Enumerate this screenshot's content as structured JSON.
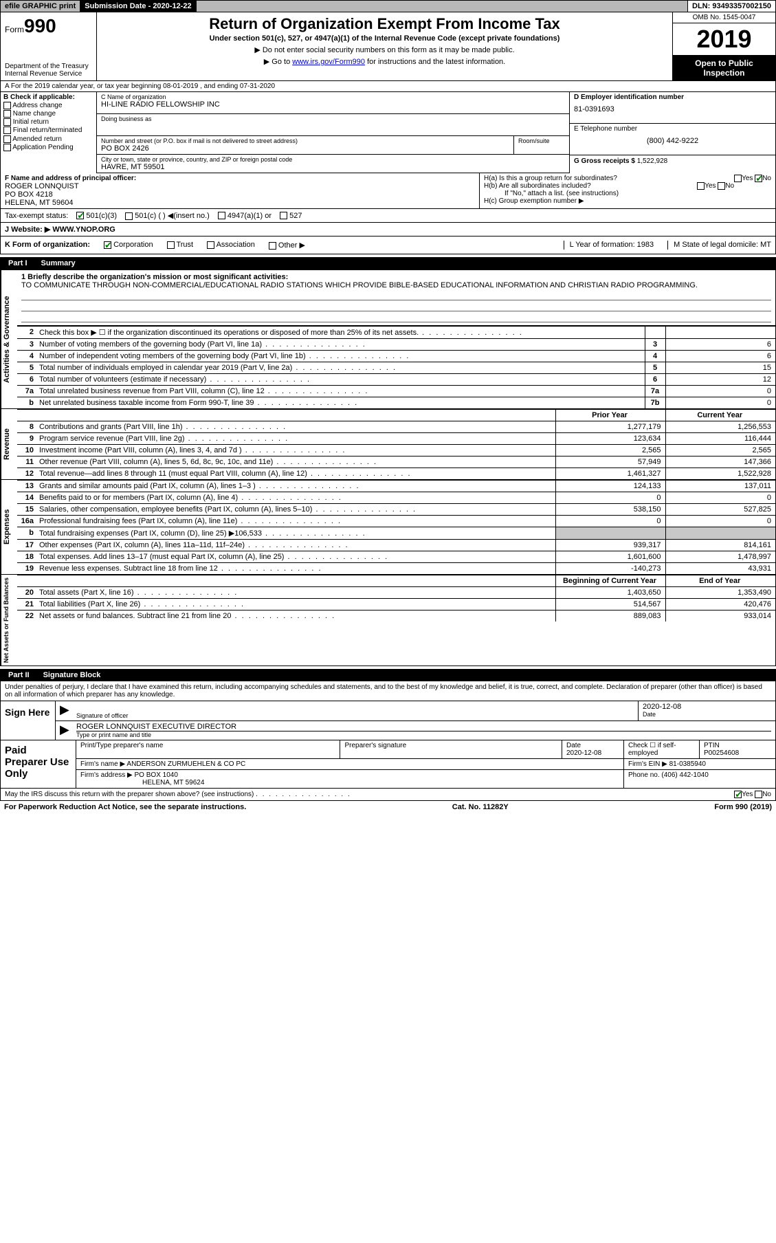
{
  "topbar": {
    "efile": "efile GRAPHIC print",
    "submission_label": "Submission Date - 2020-12-22",
    "dln": "DLN: 93493357002150"
  },
  "header": {
    "form_prefix": "Form",
    "form_number": "990",
    "dept": "Department of the Treasury\nInternal Revenue Service",
    "title": "Return of Organization Exempt From Income Tax",
    "sub": "Under section 501(c), 527, or 4947(a)(1) of the Internal Revenue Code (except private foundations)",
    "arrow1": "▶ Do not enter social security numbers on this form as it may be made public.",
    "arrow2_pre": "▶ Go to ",
    "arrow2_link": "www.irs.gov/Form990",
    "arrow2_post": " for instructions and the latest information.",
    "omb": "OMB No. 1545-0047",
    "year": "2019",
    "open": "Open to Public Inspection"
  },
  "rowA": "A For the 2019 calendar year, or tax year beginning 08-01-2019   , and ending 07-31-2020",
  "B": {
    "label": "B Check if applicable:",
    "opts": [
      "Address change",
      "Name change",
      "Initial return",
      "Final return/terminated",
      "Amended return",
      "Application Pending"
    ]
  },
  "C": {
    "name_lbl": "C Name of organization",
    "name": "HI-LINE RADIO FELLOWSHIP INC",
    "dba_lbl": "Doing business as",
    "street_lbl": "Number and street (or P.O. box if mail is not delivered to street address)",
    "room_lbl": "Room/suite",
    "street": "PO BOX 2426",
    "city_lbl": "City or town, state or province, country, and ZIP or foreign postal code",
    "city": "HAVRE, MT  59501"
  },
  "D": {
    "ein_lbl": "D Employer identification number",
    "ein": "81-0391693",
    "tel_lbl": "E Telephone number",
    "tel": "(800) 442-9222",
    "gross_lbl": "G Gross receipts $",
    "gross": "1,522,928"
  },
  "F": {
    "lbl": "F  Name and address of principal officer:",
    "name": "ROGER LONNQUIST",
    "addr1": "PO BOX 4218",
    "addr2": "HELENA, MT  59604"
  },
  "H": {
    "a": "H(a)  Is this a group return for subordinates?",
    "b": "H(b)  Are all subordinates included?",
    "b_note": "If \"No,\" attach a list. (see instructions)",
    "c": "H(c)  Group exemption number ▶",
    "yes": "Yes",
    "no": "No"
  },
  "status": {
    "lbl": "Tax-exempt status:",
    "opts": [
      "501(c)(3)",
      "501(c) (  ) ◀(insert no.)",
      "4947(a)(1) or",
      "527"
    ]
  },
  "J": {
    "lbl": "J Website: ▶",
    "val": "WWW.YNOP.ORG"
  },
  "K": {
    "lbl": "K Form of organization:",
    "opts": [
      "Corporation",
      "Trust",
      "Association",
      "Other ▶"
    ],
    "L": "L Year of formation: 1983",
    "M": "M State of legal domicile: MT"
  },
  "part1": {
    "tab": "Part I",
    "title": "Summary"
  },
  "vlabels": {
    "gov": "Activities & Governance",
    "rev": "Revenue",
    "exp": "Expenses",
    "net": "Net Assets or Fund Balances"
  },
  "mission": {
    "lbl": "1  Briefly describe the organization's mission or most significant activities:",
    "text": "TO COMMUNICATE THROUGH NON-COMMERCIAL/EDUCATIONAL RADIO STATIONS WHICH PROVIDE BIBLE-BASED EDUCATIONAL INFORMATION AND CHRISTIAN RADIO PROGRAMMING."
  },
  "gov_rows": [
    {
      "n": "2",
      "t": "Check this box ▶ ☐  if the organization discontinued its operations or disposed of more than 25% of its net assets.",
      "box": "",
      "val": ""
    },
    {
      "n": "3",
      "t": "Number of voting members of the governing body (Part VI, line 1a)",
      "box": "3",
      "val": "6"
    },
    {
      "n": "4",
      "t": "Number of independent voting members of the governing body (Part VI, line 1b)",
      "box": "4",
      "val": "6"
    },
    {
      "n": "5",
      "t": "Total number of individuals employed in calendar year 2019 (Part V, line 2a)",
      "box": "5",
      "val": "15"
    },
    {
      "n": "6",
      "t": "Total number of volunteers (estimate if necessary)",
      "box": "6",
      "val": "12"
    },
    {
      "n": "7a",
      "t": "Total unrelated business revenue from Part VIII, column (C), line 12",
      "box": "7a",
      "val": "0"
    },
    {
      "n": "b",
      "t": "Net unrelated business taxable income from Form 990-T, line 39",
      "box": "7b",
      "val": "0"
    }
  ],
  "py_cy_hdr": {
    "py": "Prior Year",
    "cy": "Current Year"
  },
  "rev_rows": [
    {
      "n": "8",
      "t": "Contributions and grants (Part VIII, line 1h)",
      "py": "1,277,179",
      "cy": "1,256,553"
    },
    {
      "n": "9",
      "t": "Program service revenue (Part VIII, line 2g)",
      "py": "123,634",
      "cy": "116,444"
    },
    {
      "n": "10",
      "t": "Investment income (Part VIII, column (A), lines 3, 4, and 7d )",
      "py": "2,565",
      "cy": "2,565"
    },
    {
      "n": "11",
      "t": "Other revenue (Part VIII, column (A), lines 5, 6d, 8c, 9c, 10c, and 11e)",
      "py": "57,949",
      "cy": "147,366"
    },
    {
      "n": "12",
      "t": "Total revenue—add lines 8 through 11 (must equal Part VIII, column (A), line 12)",
      "py": "1,461,327",
      "cy": "1,522,928"
    }
  ],
  "exp_rows": [
    {
      "n": "13",
      "t": "Grants and similar amounts paid (Part IX, column (A), lines 1–3 )",
      "py": "124,133",
      "cy": "137,011"
    },
    {
      "n": "14",
      "t": "Benefits paid to or for members (Part IX, column (A), line 4)",
      "py": "0",
      "cy": "0"
    },
    {
      "n": "15",
      "t": "Salaries, other compensation, employee benefits (Part IX, column (A), lines 5–10)",
      "py": "538,150",
      "cy": "527,825"
    },
    {
      "n": "16a",
      "t": "Professional fundraising fees (Part IX, column (A), line 11e)",
      "py": "0",
      "cy": "0"
    },
    {
      "n": "b",
      "t": "Total fundraising expenses (Part IX, column (D), line 25) ▶106,533",
      "py": "shade",
      "cy": "shade"
    },
    {
      "n": "17",
      "t": "Other expenses (Part IX, column (A), lines 11a–11d, 11f–24e)",
      "py": "939,317",
      "cy": "814,161"
    },
    {
      "n": "18",
      "t": "Total expenses. Add lines 13–17 (must equal Part IX, column (A), line 25)",
      "py": "1,601,600",
      "cy": "1,478,997"
    },
    {
      "n": "19",
      "t": "Revenue less expenses. Subtract line 18 from line 12",
      "py": "-140,273",
      "cy": "43,931"
    }
  ],
  "net_hdr": {
    "b": "Beginning of Current Year",
    "e": "End of Year"
  },
  "net_rows": [
    {
      "n": "20",
      "t": "Total assets (Part X, line 16)",
      "py": "1,403,650",
      "cy": "1,353,490"
    },
    {
      "n": "21",
      "t": "Total liabilities (Part X, line 26)",
      "py": "514,567",
      "cy": "420,476"
    },
    {
      "n": "22",
      "t": "Net assets or fund balances. Subtract line 21 from line 20",
      "py": "889,083",
      "cy": "933,014"
    }
  ],
  "part2": {
    "tab": "Part II",
    "title": "Signature Block"
  },
  "sig": {
    "intro": "Under penalties of perjury, I declare that I have examined this return, including accompanying schedules and statements, and to the best of my knowledge and belief, it is true, correct, and complete. Declaration of preparer (other than officer) is based on all information of which preparer has any knowledge.",
    "here": "Sign Here",
    "officer_lbl": "Signature of officer",
    "date_lbl": "Date",
    "date": "2020-12-08",
    "officer_name": "ROGER LONNQUIST  EXECUTIVE DIRECTOR",
    "type_lbl": "Type or print name and title"
  },
  "prep": {
    "left": "Paid Preparer Use Only",
    "name_lbl": "Print/Type preparer's name",
    "sig_lbl": "Preparer's signature",
    "date_lbl": "Date",
    "date": "2020-12-08",
    "self_lbl": "Check ☐ if self-employed",
    "ptin_lbl": "PTIN",
    "ptin": "P00254608",
    "firm_lbl": "Firm's name     ▶",
    "firm": "ANDERSON ZURMUEHLEN & CO PC",
    "ein_lbl": "Firm's EIN ▶",
    "ein": "81-0385940",
    "addr_lbl": "Firm's address ▶",
    "addr1": "PO BOX 1040",
    "addr2": "HELENA, MT  59624",
    "phone_lbl": "Phone no.",
    "phone": "(406) 442-1040"
  },
  "footer": {
    "q": "May the IRS discuss this return with the preparer shown above? (see instructions)",
    "yes": "Yes",
    "no": "No",
    "paperwork": "For Paperwork Reduction Act Notice, see the separate instructions.",
    "cat": "Cat. No. 11282Y",
    "form": "Form 990 (2019)"
  }
}
